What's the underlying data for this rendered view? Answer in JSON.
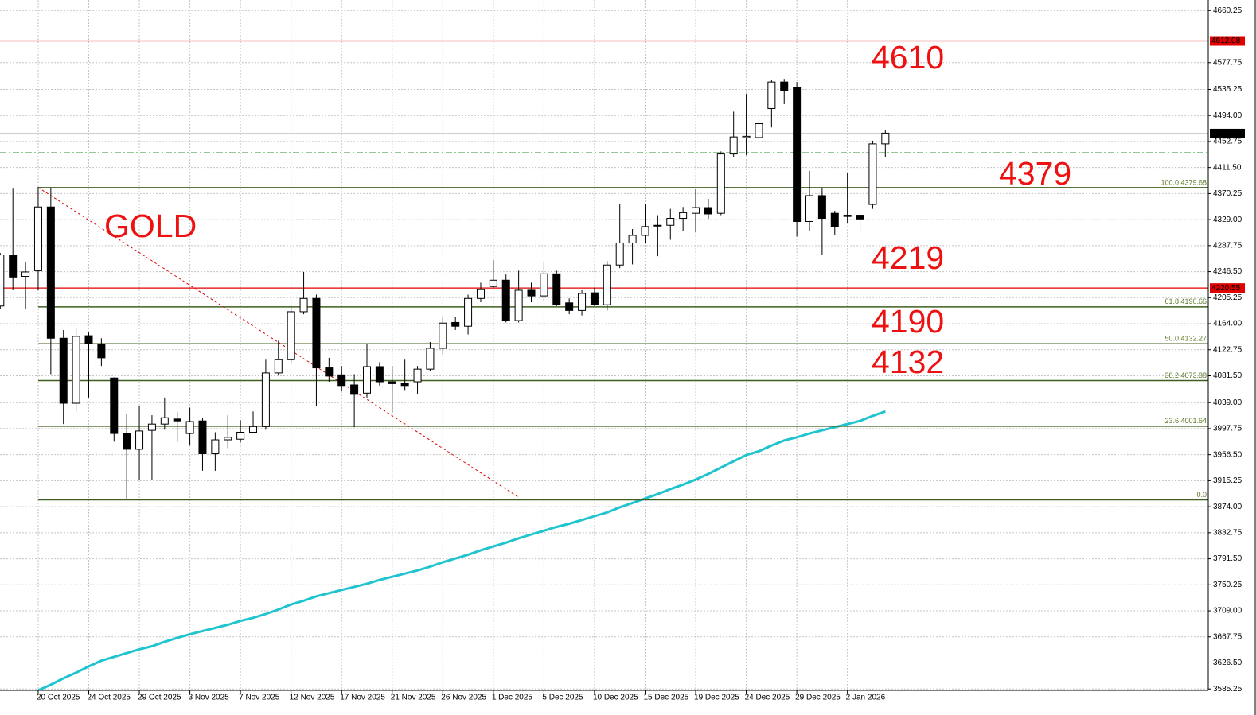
{
  "chart_data": {
    "type": "candlestick",
    "categories": [
      null,
      null,
      null,
      "20 Oct 2025",
      null,
      null,
      null,
      "24 Oct 2025",
      null,
      null,
      null,
      "29 Oct 2025",
      null,
      null,
      null,
      "3 Nov 2025",
      null,
      null,
      null,
      "7 Nov 2025",
      null,
      null,
      null,
      "12 Nov 2025",
      null,
      null,
      null,
      "17 Nov 2025",
      null,
      null,
      null,
      "21 Nov 2025",
      null,
      null,
      null,
      "26 Nov 2025",
      null,
      null,
      null,
      "1 Dec 2025",
      null,
      null,
      null,
      "5 Dec 2025",
      null,
      null,
      null,
      "10 Dec 2025",
      null,
      null,
      null,
      "15 Dec 2025",
      null,
      null,
      null,
      "19 Dec 2025",
      null,
      null,
      null,
      "24 Dec 2025",
      null,
      null,
      null,
      "29 Dec 2025",
      null,
      null,
      null,
      "2 Jan 2026",
      null,
      null,
      null
    ],
    "open": [
      4192,
      4273,
      4239,
      4248,
      4349,
      4141,
      4038,
      4145,
      4132,
      4078,
      3990,
      3965,
      3995,
      4005,
      4013,
      3990,
      4010,
      3958,
      3980,
      3981,
      3992,
      4001,
      4086,
      4107,
      4183,
      4204,
      4094,
      4083,
      4067,
      4054,
      4096,
      4072,
      4069,
      4072,
      4092,
      4125,
      4166,
      4160,
      4204,
      4223,
      4233,
      4169,
      4217,
      4208,
      4243,
      4197,
      4185,
      4213,
      4194,
      4257,
      4292,
      4304,
      4320,
      4320,
      4331,
      4339,
      4348,
      4339,
      4433,
      4459,
      4459,
      4505,
      4547,
      4538,
      4326,
      4367,
      4339,
      4334,
      4336,
      4353,
      4449
    ],
    "high": [
      4276,
      4378,
      4261,
      4381,
      4380,
      4154,
      4156,
      4150,
      4141,
      4079,
      4021,
      4034,
      4019,
      4047,
      4024,
      4031,
      4015,
      3992,
      4019,
      4011,
      4025,
      4107,
      4137,
      4192,
      4246,
      4210,
      4110,
      4097,
      4084,
      4132,
      4103,
      4097,
      4107,
      4097,
      4135,
      4175,
      4175,
      4210,
      4229,
      4265,
      4242,
      4248,
      4229,
      4261,
      4248,
      4204,
      4217,
      4221,
      4263,
      4354,
      4314,
      4354,
      4336,
      4346,
      4349,
      4377,
      4362,
      4437,
      4500,
      4528,
      4488,
      4551,
      4552,
      4547,
      4406,
      4379,
      4343,
      4403,
      4340,
      4454,
      4471
    ],
    "low": [
      4188,
      4217,
      4188,
      4217,
      4084,
      4005,
      4025,
      4047,
      4097,
      3977,
      3887,
      3917,
      3916,
      3996,
      3977,
      3971,
      3931,
      3931,
      3967,
      3976,
      3995,
      3996,
      4082,
      4102,
      4179,
      4034,
      4072,
      4057,
      4000,
      4047,
      4066,
      4023,
      4059,
      4053,
      4089,
      4116,
      4154,
      4147,
      4198,
      4221,
      4166,
      4166,
      4198,
      4200,
      4192,
      4179,
      4177,
      4192,
      4185,
      4252,
      4258,
      4291,
      4271,
      4297,
      4311,
      4309,
      4330,
      4336,
      4428,
      4431,
      4456,
      4475,
      4512,
      4302,
      4311,
      4273,
      4305,
      4324,
      4311,
      4346,
      4428
    ],
    "close": [
      4273,
      4238,
      4246,
      4349,
      4141,
      4038,
      4144,
      4132,
      4110,
      3990,
      3965,
      3994,
      4005,
      4015,
      4010,
      4009,
      3958,
      3980,
      3984,
      3992,
      4001,
      4086,
      4107,
      4183,
      4204,
      4094,
      4081,
      4066,
      4052,
      4096,
      4072,
      4069,
      4066,
      4092,
      4125,
      4165,
      4160,
      4204,
      4218,
      4233,
      4169,
      4217,
      4208,
      4243,
      4194,
      4185,
      4212,
      4194,
      4257,
      4292,
      4304,
      4318,
      4319,
      4331,
      4340,
      4348,
      4338,
      4433,
      4460,
      4461,
      4481,
      4547,
      4533,
      4326,
      4367,
      4331,
      4318,
      4336,
      4330,
      4449,
      4466
    ],
    "ma": {
      "color": "#1fc4cf",
      "values": [
        null,
        null,
        null,
        3583,
        3592,
        3602,
        3611,
        3621,
        3630,
        3636,
        3642,
        3648,
        3653,
        3660,
        3666,
        3672,
        3677,
        3682,
        3687,
        3693,
        3698,
        3704,
        3711,
        3719,
        3725,
        3732,
        3737,
        3742,
        3747,
        3752,
        3758,
        3763,
        3768,
        3773,
        3779,
        3786,
        3792,
        3798,
        3805,
        3811,
        3817,
        3824,
        3830,
        3836,
        3842,
        3847,
        3853,
        3859,
        3865,
        3873,
        3880,
        3887,
        3894,
        3902,
        3909,
        3917,
        3926,
        3936,
        3946,
        3956,
        3962,
        3971,
        3979,
        3984,
        3990,
        3995,
        4000,
        4005,
        4010,
        4018,
        4025
      ]
    },
    "ylim": [
      3583,
      4677
    ],
    "yticks": [
      4660.25,
      4577.75,
      4535.25,
      {
        "value": 4494,
        "label": "4494.00"
      },
      4452.75,
      {
        "value": 4411.5,
        "label": "4411.50"
      },
      4370.25,
      {
        "value": 4329,
        "label": "4329.00"
      },
      4287.75,
      {
        "value": 4246.5,
        "label": "4246.50"
      },
      4205.25,
      {
        "value": 4164,
        "label": "4164.00"
      },
      4122.75,
      {
        "value": 4081.5,
        "label": "4081.50"
      },
      {
        "value": 4039,
        "label": "4039.00"
      },
      3997.75,
      {
        "value": 3956.5,
        "label": "3956.50"
      },
      3915.25,
      {
        "value": 3874,
        "label": "3874.00"
      },
      3832.75,
      {
        "value": 3791.5,
        "label": "3791.50"
      },
      3750.25,
      {
        "value": 3709,
        "label": "3709.00"
      },
      3667.75,
      {
        "value": 3626.5,
        "label": "3626.50"
      },
      3585.25
    ],
    "grid": true,
    "price_lines": [
      {
        "value": 4612.08,
        "color": "#e00000"
      },
      {
        "value": 4220.55,
        "color": "#e00000"
      }
    ],
    "last_price": 4465.34,
    "signal_line": {
      "value": 4435,
      "color": "#2e8b2e"
    },
    "fibo": {
      "color": "#3f5f1f",
      "levels": [
        {
          "value": 4379.68,
          "label": "100.0 4379.68"
        },
        {
          "value": 4190.66,
          "label": "61.8 4190.66"
        },
        {
          "value": 4132.27,
          "label": "50.0 4132.27"
        },
        {
          "value": 4073.88,
          "label": "38.2 4073.88"
        },
        {
          "value": 4001.64,
          "label": "23.6 4001.64"
        },
        {
          "value": 3884.88,
          "label": "0.0"
        }
      ]
    },
    "trendline": {
      "color": "#e00000",
      "values": [
        4380,
        3889
      ]
    },
    "annotations": [
      "GOLD",
      "4610",
      "4379",
      "4219",
      "4190",
      "4132"
    ]
  }
}
